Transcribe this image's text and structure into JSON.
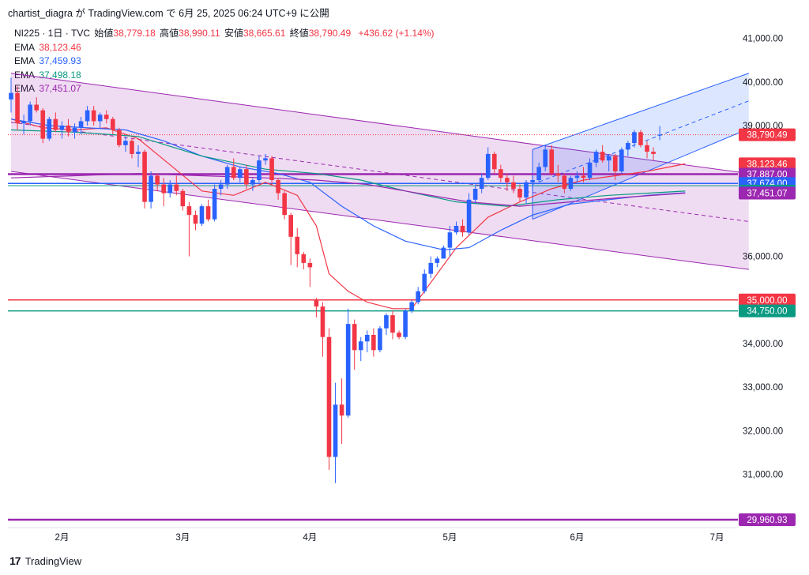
{
  "header": {
    "publish_line": "chartist_diagra が TradingView.com で 6月 25, 2025 06:24 UTC+9 に公開"
  },
  "legend": {
    "symbol": "NI225 · 1日 · TVC",
    "open_label": "始値",
    "open": "38,779.18",
    "high_label": "高値",
    "high": "38,990.11",
    "low_label": "安値",
    "low": "38,665.61",
    "close_label": "終値",
    "close": "38,790.49",
    "change": "+436.62 (+1.14%)",
    "ema": [
      {
        "label": "EMA",
        "value": "38,123.46",
        "color": "#f23645"
      },
      {
        "label": "EMA",
        "value": "37,459.93",
        "color": "#2962ff"
      },
      {
        "label": "EMA",
        "value": "37,498.18",
        "color": "#089981"
      },
      {
        "label": "EMA",
        "value": "37,451.07",
        "color": "#9c27b0"
      }
    ]
  },
  "footer": {
    "brand": "TradingView"
  },
  "colors": {
    "up": "#2962ff",
    "down": "#f23645",
    "channel": "#9c27b0",
    "uptrend": "#2962ff"
  },
  "chart_data": {
    "type": "candlestick",
    "y_ticks": [
      {
        "value": 41000,
        "label": "41,000.00"
      },
      {
        "value": 40000,
        "label": "40,000.00"
      },
      {
        "value": 39000,
        "label": "39,000.00"
      },
      {
        "value": 36000,
        "label": "36,000.00"
      },
      {
        "value": 34000,
        "label": "34,000.00"
      },
      {
        "value": 33000,
        "label": "33,000.00"
      },
      {
        "value": 32000,
        "label": "32,000.00"
      },
      {
        "value": 31000,
        "label": "31,000.00"
      }
    ],
    "x_ticks": [
      {
        "t": 8,
        "label": "2月"
      },
      {
        "t": 27,
        "label": "3月"
      },
      {
        "t": 47,
        "label": "4月"
      },
      {
        "t": 69,
        "label": "5月"
      },
      {
        "t": 89,
        "label": "6月"
      },
      {
        "t": 111,
        "label": "7月"
      }
    ],
    "price_tags": [
      {
        "value": 38790.49,
        "label": "38,790.49",
        "color": "#f23645"
      },
      {
        "value": 38123.46,
        "label": "38,123.46",
        "color": "#f23645"
      },
      {
        "value": 37887.0,
        "label": "37,887.00",
        "color": "#9c27b0"
      },
      {
        "value": 37674.0,
        "label": "37,674.00",
        "color": "#2962ff"
      },
      {
        "value": 37498.18,
        "label": "37,498.18",
        "color": "#089981"
      },
      {
        "value": 37459.93,
        "label": "37,459.93",
        "color": "#2962ff"
      },
      {
        "value": 37451.07,
        "label": "37,451.07",
        "color": "#9c27b0"
      },
      {
        "value": 35000.0,
        "label": "35,000.00",
        "color": "#f23645"
      },
      {
        "value": 34750.0,
        "label": "34,750.00",
        "color": "#089981"
      },
      {
        "value": 29960.93,
        "label": "29,960.93",
        "color": "#9c27b0"
      }
    ],
    "horizontal_lines": [
      {
        "value": 37887.0,
        "color": "#9c27b0",
        "width": 2.5
      },
      {
        "value": 37674.0,
        "color": "#2962ff",
        "width": 1.5
      },
      {
        "value": 37620.0,
        "color": "#089981",
        "width": 1
      },
      {
        "value": 35000.0,
        "color": "#f23645",
        "width": 1.5
      },
      {
        "value": 34750.0,
        "color": "#089981",
        "width": 1.5
      },
      {
        "value": 29960.93,
        "color": "#9c27b0",
        "width": 2.5
      }
    ],
    "last_price_line": 38790.49,
    "channel_down": {
      "upper": [
        [
          0,
          40200
        ],
        [
          116,
          37900
        ]
      ],
      "lower": [
        [
          0,
          37950
        ],
        [
          116,
          35700
        ]
      ]
    },
    "channel_up": {
      "upper": [
        [
          82,
          38450
        ],
        [
          116,
          40200
        ]
      ],
      "lower": [
        [
          82,
          36850
        ],
        [
          116,
          38930
        ]
      ],
      "mid_from": 82,
      "mid_to": 116
    },
    "candles": [
      [
        39600,
        40100,
        39300,
        39750
      ],
      [
        39750,
        39900,
        38900,
        39050
      ],
      [
        39050,
        39250,
        38800,
        39100
      ],
      [
        39100,
        39550,
        39000,
        39480
      ],
      [
        39480,
        39650,
        39300,
        39350
      ],
      [
        39350,
        39400,
        38600,
        38700
      ],
      [
        38700,
        39200,
        38650,
        39150
      ],
      [
        39150,
        39300,
        38850,
        38900
      ],
      [
        38900,
        39100,
        38700,
        39000
      ],
      [
        39000,
        39150,
        38750,
        38850
      ],
      [
        38850,
        39050,
        38700,
        38950
      ],
      [
        38950,
        39200,
        38800,
        39100
      ],
      [
        39100,
        39450,
        39000,
        39350
      ],
      [
        39350,
        39450,
        39000,
        39100
      ],
      [
        39100,
        39300,
        38950,
        39250
      ],
      [
        39250,
        39350,
        39050,
        39150
      ],
      [
        39150,
        39200,
        38800,
        38900
      ],
      [
        38900,
        38950,
        38500,
        38550
      ],
      [
        38550,
        38750,
        38400,
        38650
      ],
      [
        38650,
        38700,
        38250,
        38350
      ],
      [
        38350,
        38550,
        38050,
        38400
      ],
      [
        38400,
        38450,
        37100,
        37250
      ],
      [
        37250,
        37950,
        37100,
        37850
      ],
      [
        37850,
        37900,
        37500,
        37650
      ],
      [
        37650,
        37800,
        37150,
        37450
      ],
      [
        37450,
        37750,
        37350,
        37650
      ],
      [
        37650,
        37850,
        37400,
        37500
      ],
      [
        37500,
        37550,
        37050,
        37150
      ],
      [
        37150,
        37250,
        36000,
        36950
      ],
      [
        36950,
        37050,
        36600,
        36750
      ],
      [
        36750,
        37200,
        36700,
        37150
      ],
      [
        37150,
        37300,
        36800,
        36850
      ],
      [
        36850,
        37650,
        36800,
        37550
      ],
      [
        37550,
        37750,
        37400,
        37650
      ],
      [
        37650,
        38100,
        37550,
        38050
      ],
      [
        38050,
        38250,
        37750,
        37800
      ],
      [
        37800,
        38050,
        37700,
        38000
      ],
      [
        38000,
        38100,
        37550,
        37650
      ],
      [
        37650,
        37800,
        37500,
        37750
      ],
      [
        37750,
        38300,
        37700,
        38200
      ],
      [
        38200,
        38350,
        38100,
        38250
      ],
      [
        38250,
        38300,
        37650,
        37750
      ],
      [
        37750,
        37800,
        37300,
        37450
      ],
      [
        37450,
        37500,
        36850,
        36950
      ],
      [
        36950,
        37000,
        35800,
        36450
      ],
      [
        36450,
        36650,
        35750,
        36050
      ],
      [
        36050,
        36100,
        35700,
        35850
      ],
      [
        35850,
        35950,
        35300,
        35750
      ],
      [
        35000,
        35050,
        34600,
        34850
      ],
      [
        34850,
        34950,
        33700,
        34150
      ],
      [
        34150,
        34350,
        31100,
        31400
      ],
      [
        31400,
        33100,
        30800,
        32600
      ],
      [
        32600,
        33200,
        31700,
        32350
      ],
      [
        32350,
        34800,
        32300,
        34450
      ],
      [
        34450,
        34550,
        33400,
        33850
      ],
      [
        33850,
        34150,
        33600,
        34050
      ],
      [
        34050,
        34300,
        33800,
        34200
      ],
      [
        34200,
        34350,
        33700,
        33850
      ],
      [
        33850,
        34400,
        33800,
        34350
      ],
      [
        34350,
        34700,
        34200,
        34650
      ],
      [
        34650,
        34750,
        34100,
        34250
      ],
      [
        34250,
        34300,
        34100,
        34150
      ],
      [
        34150,
        34800,
        34100,
        34750
      ],
      [
        34750,
        35000,
        34700,
        34950
      ],
      [
        34950,
        35300,
        34900,
        35200
      ],
      [
        35200,
        35700,
        35150,
        35600
      ],
      [
        35600,
        36000,
        35500,
        35850
      ],
      [
        35850,
        36000,
        35750,
        35950
      ],
      [
        35950,
        36250,
        35950,
        36200
      ],
      [
        36200,
        36700,
        36000,
        36550
      ],
      [
        36550,
        36800,
        36500,
        36700
      ],
      [
        36700,
        36850,
        36450,
        36550
      ],
      [
        36550,
        37450,
        36500,
        37300
      ],
      [
        37300,
        37650,
        37200,
        37550
      ],
      [
        37550,
        37900,
        37450,
        37800
      ],
      [
        37800,
        38500,
        37750,
        38350
      ],
      [
        38350,
        38400,
        37900,
        38000
      ],
      [
        38000,
        38100,
        37700,
        37800
      ],
      [
        37800,
        37900,
        37500,
        37700
      ],
      [
        37700,
        37850,
        37450,
        37550
      ],
      [
        37550,
        37650,
        37250,
        37350
      ],
      [
        37350,
        37750,
        37200,
        37700
      ],
      [
        37700,
        37850,
        37500,
        37750
      ],
      [
        37750,
        38150,
        37700,
        38050
      ],
      [
        38050,
        38550,
        37950,
        38450
      ],
      [
        38450,
        38550,
        37850,
        37900
      ],
      [
        37900,
        38100,
        37700,
        37850
      ],
      [
        37850,
        37900,
        37450,
        37550
      ],
      [
        37550,
        37850,
        37500,
        37800
      ],
      [
        37800,
        37950,
        37700,
        37850
      ],
      [
        37850,
        38050,
        37700,
        37800
      ],
      [
        37800,
        38250,
        37750,
        38150
      ],
      [
        38150,
        38450,
        38050,
        38400
      ],
      [
        38400,
        38550,
        38150,
        38200
      ],
      [
        38200,
        38350,
        37950,
        38300
      ],
      [
        38300,
        38350,
        37750,
        37950
      ],
      [
        37950,
        38500,
        37900,
        38450
      ],
      [
        38450,
        38650,
        38300,
        38600
      ],
      [
        38600,
        38900,
        38500,
        38850
      ],
      [
        38850,
        38900,
        38500,
        38550
      ],
      [
        38550,
        38650,
        38250,
        38400
      ],
      [
        38400,
        38500,
        38200,
        38350
      ],
      [
        38779,
        38990,
        38666,
        38790
      ]
    ],
    "ema_series": [
      {
        "color": "#f23645",
        "points": [
          [
            0,
            39150
          ],
          [
            5,
            38950
          ],
          [
            10,
            38900
          ],
          [
            15,
            38950
          ],
          [
            20,
            38700
          ],
          [
            25,
            38100
          ],
          [
            30,
            37500
          ],
          [
            35,
            37400
          ],
          [
            40,
            37700
          ],
          [
            45,
            37400
          ],
          [
            48,
            36700
          ],
          [
            50,
            35600
          ],
          [
            53,
            35200
          ],
          [
            56,
            34950
          ],
          [
            60,
            34800
          ],
          [
            63,
            34800
          ],
          [
            66,
            35400
          ],
          [
            70,
            36200
          ],
          [
            75,
            36900
          ],
          [
            80,
            37250
          ],
          [
            85,
            37550
          ],
          [
            90,
            37750
          ],
          [
            95,
            37850
          ],
          [
            100,
            37950
          ],
          [
            106,
            38123
          ]
        ]
      },
      {
        "color": "#2962ff",
        "points": [
          [
            0,
            39150
          ],
          [
            6,
            39000
          ],
          [
            12,
            38950
          ],
          [
            18,
            38900
          ],
          [
            24,
            38650
          ],
          [
            30,
            38300
          ],
          [
            36,
            38050
          ],
          [
            42,
            37900
          ],
          [
            47,
            37700
          ],
          [
            52,
            37150
          ],
          [
            57,
            36700
          ],
          [
            62,
            36350
          ],
          [
            68,
            36150
          ],
          [
            72,
            36200
          ],
          [
            77,
            36600
          ],
          [
            82,
            36950
          ],
          [
            88,
            37200
          ],
          [
            94,
            37300
          ],
          [
            100,
            37400
          ],
          [
            106,
            37460
          ]
        ]
      },
      {
        "color": "#089981",
        "points": [
          [
            0,
            38900
          ],
          [
            10,
            38850
          ],
          [
            20,
            38750
          ],
          [
            30,
            38300
          ],
          [
            40,
            38000
          ],
          [
            48,
            37900
          ],
          [
            55,
            37750
          ],
          [
            62,
            37500
          ],
          [
            70,
            37250
          ],
          [
            78,
            37150
          ],
          [
            86,
            37300
          ],
          [
            94,
            37400
          ],
          [
            100,
            37450
          ],
          [
            106,
            37498
          ]
        ]
      },
      {
        "color": "#9c27b0",
        "points": [
          [
            0,
            37800
          ],
          [
            10,
            37850
          ],
          [
            20,
            37900
          ],
          [
            30,
            37850
          ],
          [
            40,
            37800
          ],
          [
            48,
            37750
          ],
          [
            56,
            37650
          ],
          [
            64,
            37450
          ],
          [
            72,
            37250
          ],
          [
            80,
            37150
          ],
          [
            88,
            37250
          ],
          [
            96,
            37350
          ],
          [
            106,
            37451
          ]
        ]
      }
    ]
  }
}
